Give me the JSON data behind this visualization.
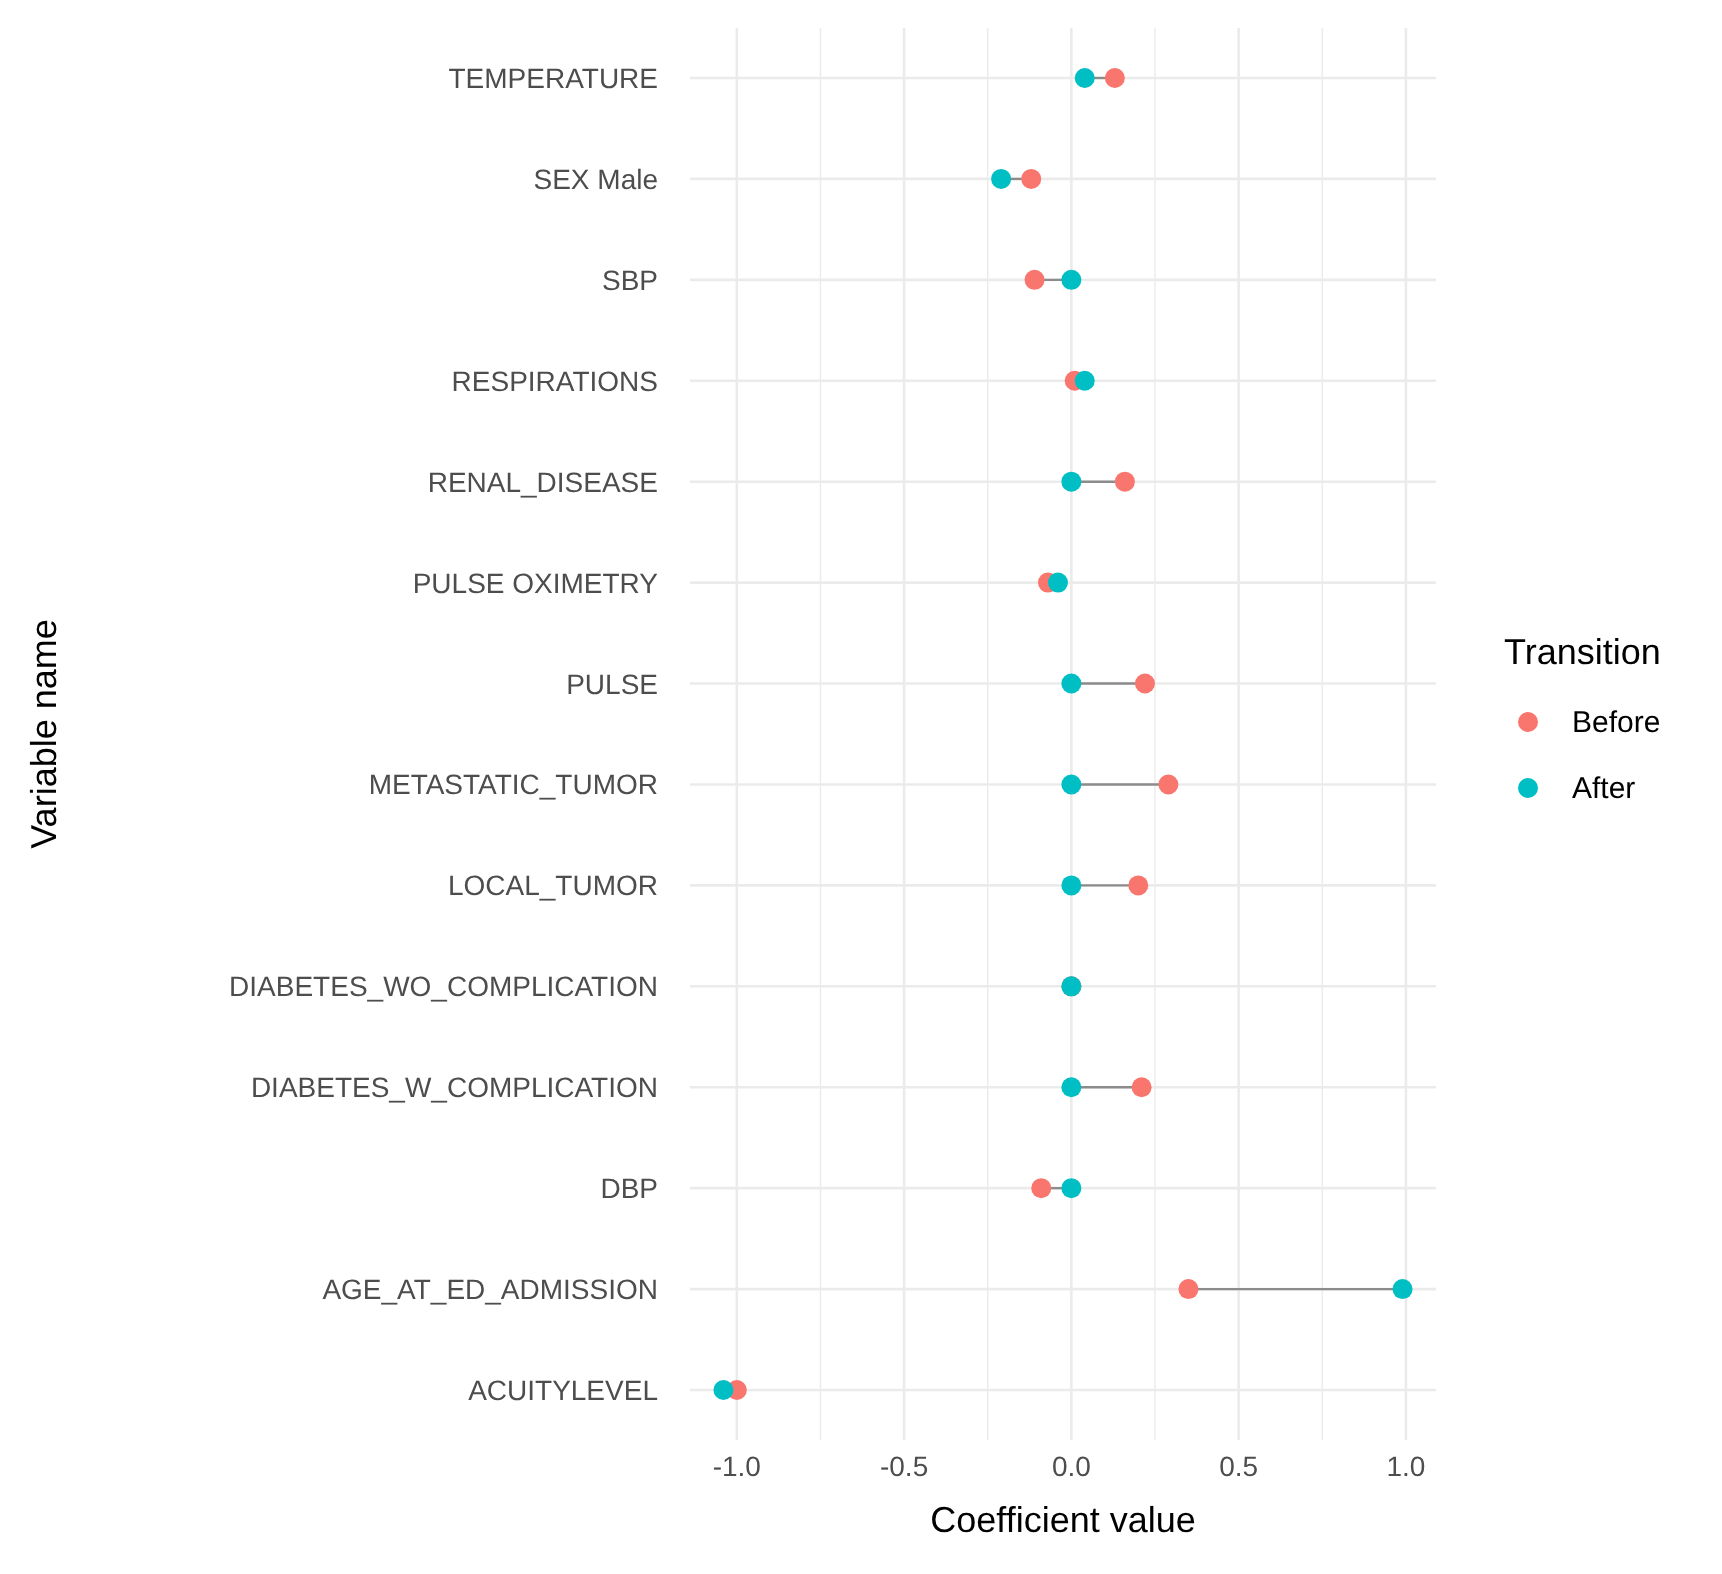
{
  "chart_data": {
    "type": "scatter",
    "orientation": "horizontal",
    "xlabel": "Coefficient value",
    "ylabel": "Variable name",
    "legend_title": "Transition",
    "categories": [
      "TEMPERATURE",
      "SEX Male",
      "SBP",
      "RESPIRATIONS",
      "RENAL_DISEASE",
      "PULSE OXIMETRY",
      "PULSE",
      "METASTATIC_TUMOR",
      "LOCAL_TUMOR",
      "DIABETES_WO_COMPLICATION",
      "DIABETES_W_COMPLICATION",
      "DBP",
      "AGE_AT_ED_ADMISSION",
      "ACUITYLEVEL"
    ],
    "series": [
      {
        "name": "Before",
        "color": "#f8766d",
        "values": [
          0.13,
          -0.12,
          -0.11,
          0.01,
          0.16,
          -0.07,
          0.22,
          0.29,
          0.2,
          0,
          0.21,
          -0.09,
          0.35,
          -1.0
        ]
      },
      {
        "name": "After",
        "color": "#00bfc4",
        "values": [
          0.04,
          -0.21,
          0,
          0.04,
          0,
          -0.04,
          0,
          0,
          0,
          0,
          0,
          0,
          0.99,
          -1.04
        ]
      }
    ],
    "xlim": [
      -1.14,
      1.09
    ],
    "xticks": [
      {
        "value": -1,
        "label": "-1.0"
      },
      {
        "value": -0.5,
        "label": "-0.5"
      },
      {
        "value": 0,
        "label": "0.0"
      },
      {
        "value": 0.5,
        "label": "0.5"
      },
      {
        "value": 1,
        "label": "1.0"
      }
    ],
    "grid": true,
    "legend": "right",
    "marker": "circle"
  }
}
